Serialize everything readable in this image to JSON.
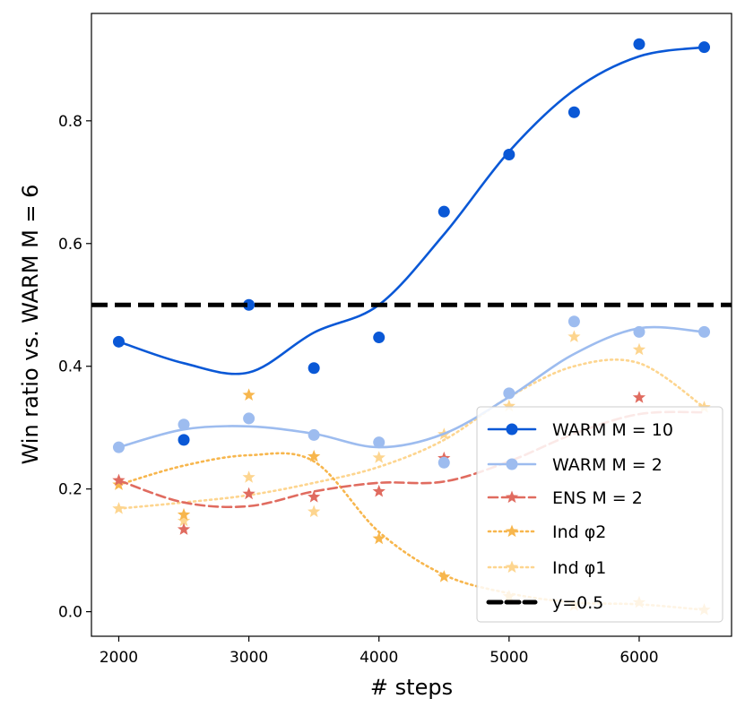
{
  "chart_data": {
    "type": "line",
    "xlabel": "# steps",
    "ylabel": "Win ratio vs. WARM M = 6",
    "xlim": [
      1790,
      6710
    ],
    "ylim": [
      -0.04,
      0.975
    ],
    "xticks": [
      2000,
      3000,
      4000,
      5000,
      6000
    ],
    "yticks": [
      0.0,
      0.2,
      0.4,
      0.6,
      0.8
    ],
    "x": [
      2000,
      2500,
      3000,
      3500,
      4000,
      4500,
      5000,
      5500,
      6000,
      6500
    ],
    "grid": false,
    "legend_position": "bottom-right",
    "series": [
      {
        "name": "WARM M = 10",
        "color": "#0a58d6",
        "marker": "circle",
        "linestyle": "solid",
        "values": [
          0.44,
          0.28,
          0.5,
          0.397,
          0.447,
          0.652,
          0.745,
          0.814,
          0.925,
          0.92
        ],
        "fit": [
          0.44,
          0.405,
          0.39,
          0.455,
          0.5,
          0.615,
          0.75,
          0.85,
          0.905,
          0.92
        ]
      },
      {
        "name": "WARM M = 2",
        "color": "#9dbcef",
        "marker": "circle",
        "linestyle": "solid",
        "values": [
          0.268,
          0.305,
          0.315,
          0.288,
          0.276,
          0.243,
          0.356,
          0.473,
          0.456,
          0.456
        ],
        "fit": [
          0.268,
          0.297,
          0.302,
          0.29,
          0.268,
          0.29,
          0.35,
          0.42,
          0.462,
          0.456
        ]
      },
      {
        "name": "ENS M = 2",
        "color": "#e06b5f",
        "marker": "star",
        "linestyle": "dashed",
        "values": [
          0.214,
          0.134,
          0.192,
          0.187,
          0.196,
          0.25,
          null,
          null,
          0.349,
          null
        ],
        "fit": [
          0.214,
          0.178,
          0.172,
          0.196,
          0.21,
          0.212,
          0.245,
          0.29,
          0.322,
          0.325
        ]
      },
      {
        "name": "Ind φ2",
        "color": "#f7b64d",
        "marker": "star",
        "linestyle": "dotted",
        "values": [
          0.207,
          0.158,
          0.353,
          0.253,
          0.119,
          0.057,
          0.025,
          0.01,
          0.015,
          0.003
        ],
        "fit": [
          0.207,
          0.238,
          0.255,
          0.245,
          0.13,
          0.06,
          0.03,
          0.015,
          0.012,
          0.003
        ]
      },
      {
        "name": "Ind φ1",
        "color": "#fdd58f",
        "marker": "star",
        "linestyle": "dotted",
        "values": [
          0.168,
          0.148,
          0.219,
          0.163,
          0.251,
          0.289,
          0.335,
          0.448,
          0.427,
          0.333
        ],
        "fit": [
          0.168,
          0.178,
          0.19,
          0.21,
          0.236,
          0.28,
          0.35,
          0.4,
          0.405,
          0.333
        ]
      },
      {
        "name": "y=0.5",
        "color": "#000000",
        "marker": "none",
        "linestyle": "dashed",
        "values": [
          0.5,
          0.5,
          0.5,
          0.5,
          0.5,
          0.5,
          0.5,
          0.5,
          0.5,
          0.5
        ]
      }
    ]
  },
  "legend": {
    "labels": [
      "WARM M = 10",
      "WARM M = 2",
      "ENS M = 2",
      "Ind φ2",
      "Ind φ1",
      "y=0.5"
    ]
  }
}
